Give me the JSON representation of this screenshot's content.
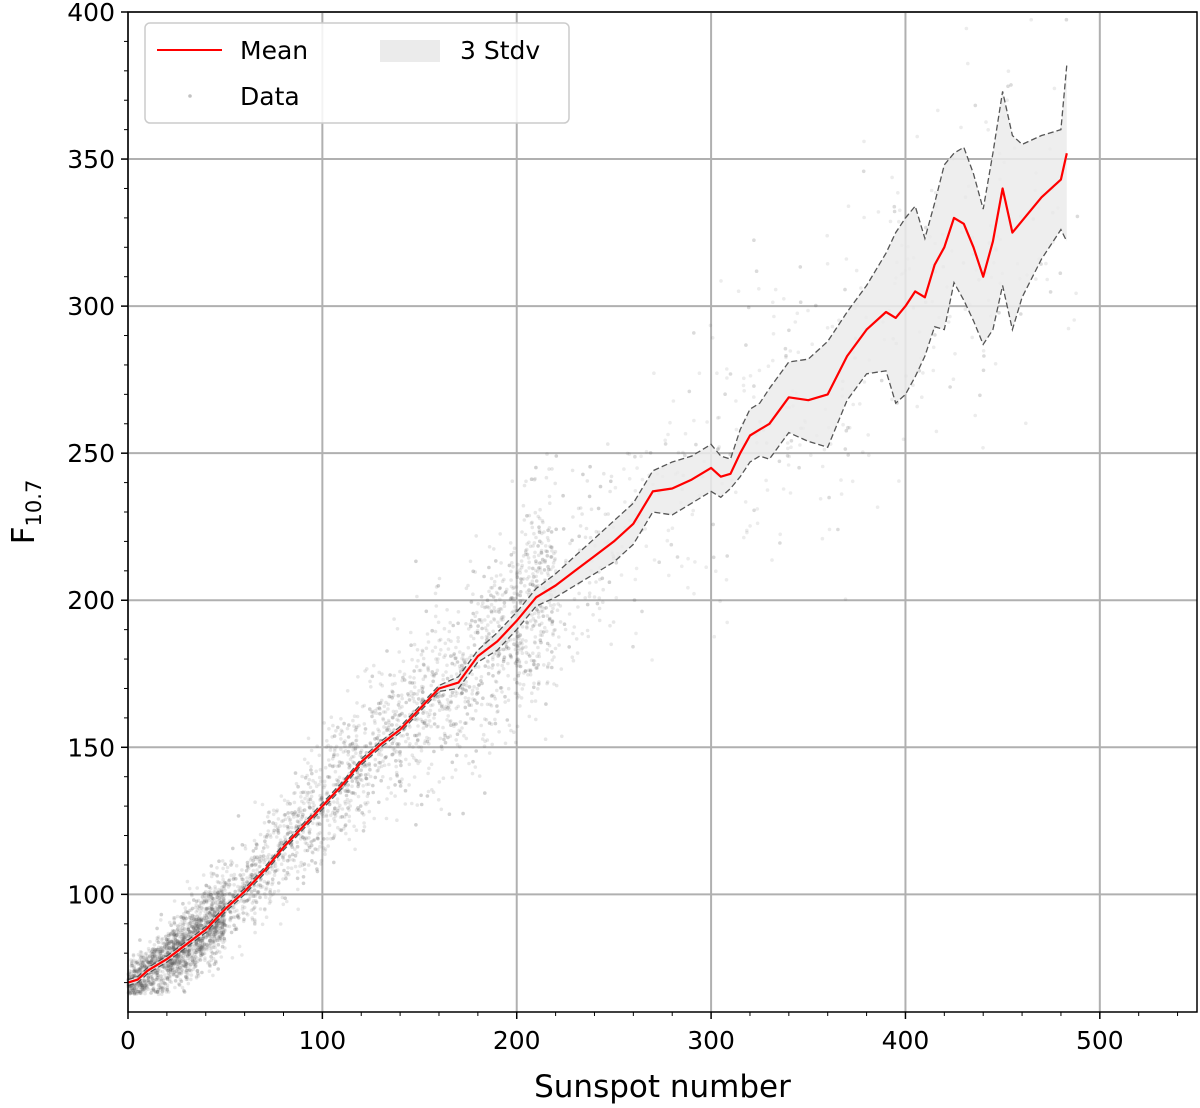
{
  "chart_data": {
    "type": "scatter",
    "xlabel": "Sunspot number",
    "ylabel_main": "F",
    "ylabel_sub": "10.7",
    "xlim": [
      0,
      550
    ],
    "ylim": [
      60,
      400
    ],
    "xticks": [
      0,
      100,
      200,
      300,
      400,
      500
    ],
    "xtick_labels": [
      "0",
      "100",
      "200",
      "300",
      "400",
      "500"
    ],
    "yticks": [
      100,
      150,
      200,
      250,
      300,
      350,
      400
    ],
    "ytick_labels": [
      "100",
      "150",
      "200",
      "250",
      "300",
      "350",
      "400"
    ],
    "grid": true,
    "legend": {
      "placement": "top-left",
      "entries": [
        {
          "label": "Mean",
          "style": "line",
          "color": "#ff0000"
        },
        {
          "label": "3 Stdv",
          "style": "fill",
          "color": "#ebebeb"
        },
        {
          "label": "Data",
          "style": "point",
          "color": "#999999"
        }
      ]
    },
    "series": [
      {
        "name": "Mean",
        "color": "#ff0000",
        "x": [
          0,
          5,
          10,
          20,
          30,
          40,
          50,
          60,
          70,
          80,
          90,
          100,
          110,
          120,
          130,
          140,
          150,
          160,
          170,
          180,
          190,
          200,
          210,
          220,
          230,
          240,
          250,
          260,
          270,
          280,
          290,
          300,
          305,
          310,
          315,
          320,
          325,
          330,
          340,
          350,
          360,
          370,
          380,
          390,
          395,
          400,
          405,
          410,
          415,
          420,
          425,
          430,
          435,
          440,
          445,
          450,
          455,
          460,
          470,
          480,
          483
        ],
        "y": [
          70,
          71,
          74,
          78,
          83,
          88,
          95,
          101,
          108,
          116,
          123,
          130,
          137,
          145,
          151,
          156,
          163,
          170,
          172,
          181,
          186,
          193,
          201,
          205,
          210,
          215,
          220,
          226,
          237,
          238,
          241,
          245,
          242,
          243,
          250,
          256,
          258,
          260,
          269,
          268,
          270,
          283,
          292,
          298,
          296,
          300,
          305,
          303,
          314,
          320,
          330,
          328,
          320,
          310,
          322,
          340,
          325,
          329,
          337,
          343,
          352
        ]
      },
      {
        "name": "3 Stdv",
        "color": "#ebebeb",
        "x": [
          0,
          5,
          10,
          20,
          30,
          40,
          50,
          60,
          70,
          80,
          90,
          100,
          110,
          120,
          130,
          140,
          150,
          160,
          170,
          180,
          190,
          200,
          210,
          220,
          230,
          240,
          250,
          260,
          270,
          280,
          290,
          300,
          305,
          310,
          315,
          320,
          325,
          330,
          340,
          350,
          360,
          370,
          380,
          390,
          395,
          400,
          405,
          410,
          415,
          420,
          425,
          430,
          435,
          440,
          445,
          450,
          455,
          460,
          470,
          480,
          483
        ],
        "upper": [
          71,
          72,
          75,
          79,
          84,
          89,
          96,
          102,
          109,
          117,
          124,
          131,
          138,
          146,
          152,
          157,
          164,
          171,
          174,
          183,
          189,
          196,
          204,
          209,
          215,
          221,
          227,
          233,
          244,
          247,
          249,
          253,
          249,
          248,
          258,
          265,
          267,
          272,
          281,
          282,
          288,
          298,
          307,
          318,
          325,
          330,
          334,
          323,
          335,
          348,
          352,
          354,
          345,
          333,
          352,
          373,
          358,
          355,
          358,
          360,
          382
        ],
        "lower": [
          69,
          70,
          73,
          77,
          82,
          87,
          94,
          100,
          107,
          115,
          122,
          129,
          136,
          144,
          150,
          155,
          162,
          169,
          170,
          179,
          183,
          190,
          198,
          201,
          205,
          209,
          213,
          219,
          230,
          229,
          233,
          237,
          235,
          238,
          242,
          247,
          249,
          248,
          257,
          254,
          252,
          268,
          277,
          278,
          267,
          270,
          276,
          283,
          293,
          292,
          308,
          302,
          295,
          287,
          292,
          307,
          292,
          303,
          316,
          326,
          322
        ]
      }
    ],
    "scatter_note_points": "Data"
  }
}
